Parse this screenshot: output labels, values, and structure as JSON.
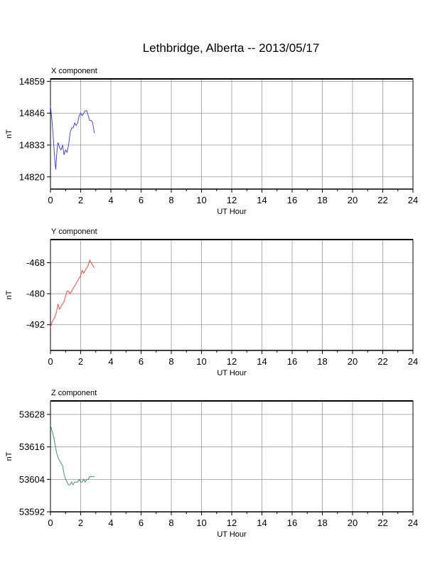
{
  "title": "Lethbridge, Alberta -- 2013/05/17",
  "chart_data": [
    {
      "type": "line",
      "panel_label": "X component",
      "xlabel": "UT Hour",
      "ylabel": "nT",
      "xlim": [
        0,
        24
      ],
      "x_ticks": [
        0,
        2,
        4,
        6,
        8,
        10,
        12,
        14,
        16,
        18,
        20,
        22,
        24
      ],
      "ylim": [
        14815,
        14860
      ],
      "y_ticks": [
        14820,
        14833,
        14846,
        14859
      ],
      "grid": true,
      "color": "#3333ff",
      "series": [
        {
          "x": [
            0,
            0.05,
            0.1,
            0.15,
            0.2,
            0.25,
            0.3,
            0.35,
            0.4,
            0.45,
            0.5,
            0.55,
            0.6,
            0.7,
            0.8,
            0.9,
            1.0,
            1.1,
            1.2,
            1.3,
            1.4,
            1.5,
            1.6,
            1.7,
            1.8,
            1.9,
            2.0,
            2.1,
            2.2,
            2.3,
            2.4,
            2.5,
            2.6,
            2.7,
            2.8,
            2.9
          ],
          "y": [
            14849,
            14846,
            14843,
            14839,
            14835,
            14830,
            14826,
            14823,
            14828,
            14832,
            14834,
            14833,
            14832,
            14831,
            14833,
            14829,
            14831,
            14830,
            14833,
            14838,
            14840,
            14840,
            14842,
            14841,
            14842,
            14845,
            14846,
            14845,
            14846,
            14847,
            14847,
            14845,
            14843,
            14843,
            14842,
            14838
          ]
        }
      ]
    },
    {
      "type": "line",
      "panel_label": "Y component",
      "xlabel": "UT Hour",
      "ylabel": "nT",
      "xlim": [
        0,
        24
      ],
      "x_ticks": [
        0,
        2,
        4,
        6,
        8,
        10,
        12,
        14,
        16,
        18,
        20,
        22,
        24
      ],
      "ylim": [
        -502,
        -459
      ],
      "y_ticks": [
        -468,
        -480,
        -492
      ],
      "grid": true,
      "color": "#ff3333",
      "series": [
        {
          "x": [
            0,
            0.1,
            0.2,
            0.3,
            0.4,
            0.5,
            0.6,
            0.7,
            0.8,
            0.9,
            1.0,
            1.1,
            1.2,
            1.3,
            1.4,
            1.5,
            1.6,
            1.7,
            1.8,
            1.9,
            2.0,
            2.1,
            2.2,
            2.3,
            2.4,
            2.5,
            2.6,
            2.7,
            2.8,
            2.9
          ],
          "y": [
            -493,
            -491,
            -490,
            -489,
            -487,
            -484,
            -486,
            -485,
            -484,
            -483,
            -481,
            -479,
            -479,
            -480,
            -479,
            -478,
            -477,
            -476,
            -475,
            -474,
            -473,
            -471,
            -472,
            -471,
            -470,
            -469,
            -467,
            -468,
            -469,
            -470
          ]
        }
      ]
    },
    {
      "type": "line",
      "panel_label": "Z component",
      "xlabel": "UT Hour",
      "ylabel": "nT",
      "xlim": [
        0,
        24
      ],
      "x_ticks": [
        0,
        2,
        4,
        6,
        8,
        10,
        12,
        14,
        16,
        18,
        20,
        22,
        24
      ],
      "ylim": [
        53592,
        53633
      ],
      "y_ticks": [
        53592,
        53604,
        53616,
        53628
      ],
      "grid": true,
      "color": "#338866",
      "series": [
        {
          "x": [
            0,
            0.1,
            0.2,
            0.3,
            0.4,
            0.5,
            0.6,
            0.7,
            0.8,
            0.9,
            1.0,
            1.1,
            1.2,
            1.3,
            1.4,
            1.5,
            1.6,
            1.7,
            1.8,
            1.9,
            2.0,
            2.1,
            2.2,
            2.3,
            2.4,
            2.5,
            2.6,
            2.7,
            2.8,
            2.9
          ],
          "y": [
            53624,
            53622,
            53620,
            53617,
            53614,
            53612,
            53611,
            53610,
            53609,
            53606,
            53604,
            53603,
            53602,
            53602,
            53603,
            53602,
            53603,
            53603,
            53603,
            53604,
            53603,
            53603,
            53604,
            53603,
            53604,
            53604,
            53605,
            53605,
            53605,
            53605
          ]
        }
      ]
    }
  ]
}
